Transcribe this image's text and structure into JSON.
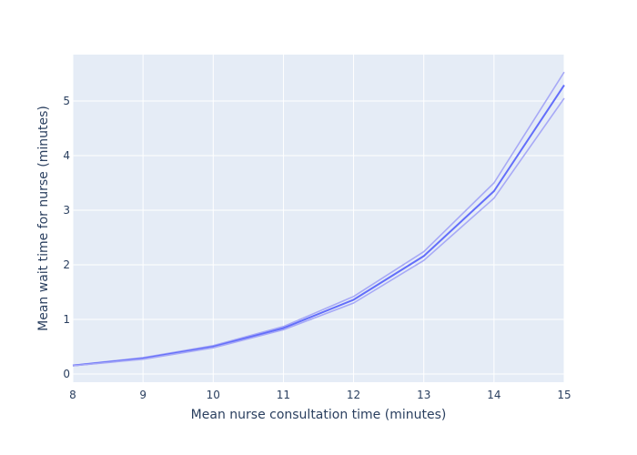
{
  "chart_data": {
    "type": "line",
    "title": "",
    "xlabel": "Mean nurse consultation time (minutes)",
    "ylabel": "Mean wait time for nurse (minutes)",
    "xlim": [
      8,
      15
    ],
    "ylim": [
      -0.15,
      5.85
    ],
    "x_ticks": [
      "8",
      "9",
      "10",
      "11",
      "12",
      "13",
      "14",
      "15"
    ],
    "y_ticks": [
      "0",
      "1",
      "2",
      "3",
      "4",
      "5"
    ],
    "grid": true,
    "legend": "none",
    "x": [
      8,
      9,
      10,
      11,
      12,
      13,
      14,
      15
    ],
    "series": [
      {
        "role": "upper",
        "color": "#a7a9f6",
        "values": [
          0.16,
          0.3,
          0.52,
          0.87,
          1.42,
          2.24,
          3.5,
          5.53
        ]
      },
      {
        "role": "mean",
        "color": "#636efa",
        "values": [
          0.155,
          0.285,
          0.5,
          0.84,
          1.36,
          2.16,
          3.35,
          5.29
        ]
      },
      {
        "role": "lower",
        "color": "#a7a9f6",
        "values": [
          0.15,
          0.27,
          0.48,
          0.81,
          1.3,
          2.08,
          3.22,
          5.05
        ]
      }
    ],
    "colors": {
      "plot_bg": "#e5ecf6",
      "grid": "#ffffff",
      "text": "#2a3f5f"
    }
  }
}
